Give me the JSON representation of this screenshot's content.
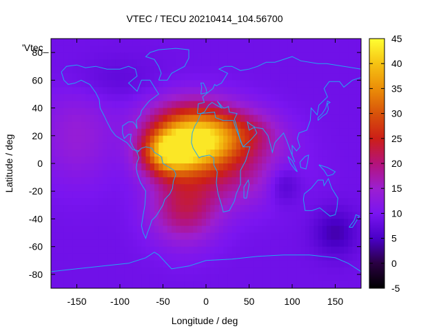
{
  "chart_data": {
    "type": "heatmap",
    "title": "VTEC / TECU 20210414_104.56700",
    "xlabel": "Longitude / deg",
    "ylabel": "Latitude / deg",
    "xlim": [
      -180,
      180
    ],
    "ylim": [
      -90,
      90
    ],
    "x_ticks": [
      -150,
      -100,
      -50,
      0,
      50,
      100,
      150
    ],
    "y_ticks": [
      -80,
      -60,
      -40,
      -20,
      0,
      20,
      40,
      60,
      80
    ],
    "colorbar": {
      "range": [
        -5,
        45
      ],
      "ticks": [
        -5,
        0,
        5,
        10,
        15,
        20,
        25,
        30,
        35,
        40,
        45
      ],
      "palette": "black-purple-red-orange-yellow"
    },
    "legend_label": "'Vtec_",
    "background_level": 9,
    "peak_value": 43,
    "blobs": [
      {
        "lon": -45,
        "lat": 8,
        "sigma_lon": 22,
        "sigma_lat": 12,
        "amp": 26
      },
      {
        "lon": -5,
        "lat": 14,
        "sigma_lon": 28,
        "sigma_lat": 14,
        "amp": 22
      },
      {
        "lon": -20,
        "lat": 30,
        "sigma_lon": 38,
        "sigma_lat": 14,
        "amp": 13
      },
      {
        "lon": -25,
        "lat": -32,
        "sigma_lon": 28,
        "sigma_lat": 18,
        "amp": 12
      },
      {
        "lon": 30,
        "lat": -5,
        "sigma_lon": 45,
        "sigma_lat": 18,
        "amp": 9
      },
      {
        "lon": 45,
        "lat": 22,
        "sigma_lon": 30,
        "sigma_lat": 12,
        "amp": 9
      },
      {
        "lon": -150,
        "lat": 20,
        "sigma_lon": 30,
        "sigma_lat": 25,
        "amp": 5
      },
      {
        "lon": 90,
        "lat": -15,
        "sigma_lon": 14,
        "sigma_lat": 10,
        "amp": -5
      },
      {
        "lon": 150,
        "lat": -50,
        "sigma_lon": 18,
        "sigma_lat": 12,
        "amp": -5
      },
      {
        "lon": -110,
        "lat": 60,
        "sigma_lon": 40,
        "sigma_lat": 12,
        "amp": -2
      }
    ],
    "coastlines": [
      {
        "name": "north-america",
        "points": [
          [
            -168,
            66
          ],
          [
            -162,
            70
          ],
          [
            -150,
            71
          ],
          [
            -140,
            69
          ],
          [
            -128,
            70
          ],
          [
            -115,
            68
          ],
          [
            -100,
            68
          ],
          [
            -90,
            70
          ],
          [
            -82,
            68
          ],
          [
            -80,
            63
          ],
          [
            -90,
            58
          ],
          [
            -85,
            55
          ],
          [
            -80,
            52
          ],
          [
            -75,
            60
          ],
          [
            -65,
            60
          ],
          [
            -60,
            55
          ],
          [
            -55,
            50
          ],
          [
            -66,
            45
          ],
          [
            -70,
            42
          ],
          [
            -75,
            38
          ],
          [
            -76,
            35
          ],
          [
            -81,
            31
          ],
          [
            -80,
            25
          ],
          [
            -82,
            28
          ],
          [
            -85,
            30
          ],
          [
            -90,
            30
          ],
          [
            -97,
            27
          ],
          [
            -97,
            22
          ],
          [
            -95,
            18
          ],
          [
            -90,
            21
          ],
          [
            -87,
            21
          ],
          [
            -88,
            16
          ],
          [
            -84,
            11
          ],
          [
            -80,
            8
          ],
          [
            -78,
            9
          ],
          [
            -85,
            10
          ],
          [
            -92,
            15
          ],
          [
            -105,
            20
          ],
          [
            -110,
            24
          ],
          [
            -115,
            30
          ],
          [
            -118,
            34
          ],
          [
            -123,
            40
          ],
          [
            -124,
            46
          ],
          [
            -128,
            51
          ],
          [
            -135,
            57
          ],
          [
            -145,
            60
          ],
          [
            -152,
            58
          ],
          [
            -160,
            57
          ],
          [
            -165,
            60
          ],
          [
            -168,
            66
          ]
        ]
      },
      {
        "name": "greenland",
        "points": [
          [
            -55,
            60
          ],
          [
            -45,
            60
          ],
          [
            -40,
            65
          ],
          [
            -25,
            70
          ],
          [
            -20,
            76
          ],
          [
            -20,
            82
          ],
          [
            -35,
            83
          ],
          [
            -55,
            82
          ],
          [
            -65,
            80
          ],
          [
            -70,
            77
          ],
          [
            -60,
            75
          ],
          [
            -55,
            70
          ],
          [
            -52,
            65
          ],
          [
            -55,
            60
          ]
        ]
      },
      {
        "name": "south-america",
        "points": [
          [
            -80,
            8
          ],
          [
            -75,
            11
          ],
          [
            -70,
            12
          ],
          [
            -63,
            11
          ],
          [
            -60,
            8
          ],
          [
            -52,
            5
          ],
          [
            -50,
            0
          ],
          [
            -45,
            -2
          ],
          [
            -37,
            -5
          ],
          [
            -35,
            -8
          ],
          [
            -38,
            -13
          ],
          [
            -39,
            -18
          ],
          [
            -42,
            -22
          ],
          [
            -48,
            -26
          ],
          [
            -50,
            -30
          ],
          [
            -55,
            -35
          ],
          [
            -58,
            -38
          ],
          [
            -63,
            -41
          ],
          [
            -65,
            -45
          ],
          [
            -68,
            -50
          ],
          [
            -70,
            -54
          ],
          [
            -73,
            -50
          ],
          [
            -75,
            -45
          ],
          [
            -73,
            -37
          ],
          [
            -71,
            -30
          ],
          [
            -70,
            -20
          ],
          [
            -76,
            -14
          ],
          [
            -80,
            -7
          ],
          [
            -81,
            -3
          ],
          [
            -80,
            1
          ],
          [
            -78,
            4
          ],
          [
            -80,
            8
          ]
        ]
      },
      {
        "name": "europe-asia",
        "points": [
          [
            -10,
            36
          ],
          [
            -9,
            43
          ],
          [
            -2,
            44
          ],
          [
            -4,
            48
          ],
          [
            2,
            51
          ],
          [
            8,
            54
          ],
          [
            10,
            57
          ],
          [
            12,
            56
          ],
          [
            18,
            58
          ],
          [
            25,
            65
          ],
          [
            15,
            68
          ],
          [
            22,
            70
          ],
          [
            30,
            70
          ],
          [
            40,
            67
          ],
          [
            50,
            68
          ],
          [
            60,
            70
          ],
          [
            70,
            73
          ],
          [
            80,
            73
          ],
          [
            100,
            77
          ],
          [
            110,
            74
          ],
          [
            130,
            72
          ],
          [
            140,
            72
          ],
          [
            160,
            70
          ],
          [
            180,
            68
          ],
          [
            180,
            62
          ],
          [
            170,
            60
          ],
          [
            160,
            55
          ],
          [
            155,
            59
          ],
          [
            143,
            59
          ],
          [
            137,
            54
          ],
          [
            141,
            48
          ],
          [
            131,
            42
          ],
          [
            129,
            35
          ],
          [
            122,
            40
          ],
          [
            121,
            31
          ],
          [
            117,
            24
          ],
          [
            108,
            22
          ],
          [
            106,
            18
          ],
          [
            109,
            12
          ],
          [
            105,
            9
          ],
          [
            100,
            13
          ],
          [
            100,
            6
          ],
          [
            103,
            1
          ],
          [
            98,
            9
          ],
          [
            94,
            16
          ],
          [
            90,
            22
          ],
          [
            80,
            15
          ],
          [
            77,
            8
          ],
          [
            72,
            20
          ],
          [
            66,
            25
          ],
          [
            57,
            26
          ],
          [
            52,
            28
          ],
          [
            48,
            30
          ],
          [
            50,
            24
          ],
          [
            56,
            26
          ],
          [
            59,
            22
          ],
          [
            52,
            17
          ],
          [
            43,
            12
          ],
          [
            40,
            16
          ],
          [
            35,
            28
          ],
          [
            33,
            32
          ],
          [
            36,
            36
          ],
          [
            27,
            37
          ],
          [
            26,
            41
          ],
          [
            22,
            40
          ],
          [
            20,
            40
          ],
          [
            13,
            45
          ],
          [
            18,
            40
          ],
          [
            12,
            42
          ],
          [
            7,
            44
          ],
          [
            3,
            42
          ],
          [
            0,
            39
          ],
          [
            -2,
            37
          ],
          [
            -6,
            36
          ],
          [
            -10,
            36
          ]
        ]
      },
      {
        "name": "africa",
        "points": [
          [
            -6,
            36
          ],
          [
            10,
            37
          ],
          [
            11,
            33
          ],
          [
            20,
            31
          ],
          [
            32,
            31
          ],
          [
            33,
            28
          ],
          [
            38,
            20
          ],
          [
            43,
            12
          ],
          [
            51,
            12
          ],
          [
            46,
            2
          ],
          [
            40,
            -5
          ],
          [
            40,
            -15
          ],
          [
            35,
            -22
          ],
          [
            33,
            -27
          ],
          [
            27,
            -34
          ],
          [
            20,
            -35
          ],
          [
            18,
            -30
          ],
          [
            14,
            -22
          ],
          [
            12,
            -14
          ],
          [
            13,
            -6
          ],
          [
            9,
            -1
          ],
          [
            9,
            4
          ],
          [
            4,
            6
          ],
          [
            -5,
            5
          ],
          [
            -8,
            4
          ],
          [
            -15,
            11
          ],
          [
            -17,
            15
          ],
          [
            -16,
            22
          ],
          [
            -13,
            27
          ],
          [
            -10,
            30
          ],
          [
            -6,
            36
          ]
        ]
      },
      {
        "name": "australia",
        "points": [
          [
            114,
            -22
          ],
          [
            122,
            -18
          ],
          [
            130,
            -12
          ],
          [
            136,
            -12
          ],
          [
            137,
            -16
          ],
          [
            142,
            -11
          ],
          [
            146,
            -18
          ],
          [
            153,
            -25
          ],
          [
            152,
            -32
          ],
          [
            150,
            -37
          ],
          [
            144,
            -38
          ],
          [
            138,
            -35
          ],
          [
            132,
            -32
          ],
          [
            123,
            -34
          ],
          [
            115,
            -34
          ],
          [
            113,
            -26
          ],
          [
            114,
            -22
          ]
        ]
      },
      {
        "name": "antarctica",
        "points": [
          [
            -180,
            -78
          ],
          [
            -150,
            -76
          ],
          [
            -120,
            -74
          ],
          [
            -90,
            -72
          ],
          [
            -70,
            -68
          ],
          [
            -60,
            -64
          ],
          [
            -55,
            -66
          ],
          [
            -40,
            -76
          ],
          [
            -20,
            -74
          ],
          [
            0,
            -70
          ],
          [
            30,
            -69
          ],
          [
            60,
            -67
          ],
          [
            90,
            -66
          ],
          [
            120,
            -66
          ],
          [
            150,
            -68
          ],
          [
            165,
            -72
          ],
          [
            180,
            -78
          ]
        ]
      },
      {
        "name": "madagascar",
        "points": [
          [
            44,
            -25
          ],
          [
            47,
            -25
          ],
          [
            50,
            -15
          ],
          [
            49,
            -12
          ],
          [
            44,
            -17
          ],
          [
            44,
            -25
          ]
        ]
      },
      {
        "name": "british-isles",
        "points": [
          [
            -6,
            50
          ],
          [
            1,
            51
          ],
          [
            0,
            54
          ],
          [
            -3,
            58
          ],
          [
            -6,
            58
          ],
          [
            -5,
            55
          ],
          [
            -6,
            50
          ]
        ]
      },
      {
        "name": "japan",
        "points": [
          [
            130,
            31
          ],
          [
            135,
            34
          ],
          [
            140,
            36
          ],
          [
            142,
            39
          ],
          [
            141,
            43
          ],
          [
            144,
            44
          ],
          [
            141,
            45
          ],
          [
            139,
            40
          ],
          [
            135,
            36
          ],
          [
            130,
            33
          ],
          [
            130,
            31
          ]
        ]
      },
      {
        "name": "new-zealand",
        "points": [
          [
            166,
            -46
          ],
          [
            172,
            -41
          ],
          [
            174,
            -37
          ],
          [
            178,
            -38
          ],
          [
            174,
            -42
          ],
          [
            170,
            -46
          ],
          [
            166,
            -46
          ]
        ]
      },
      {
        "name": "borneo",
        "points": [
          [
            109,
            1
          ],
          [
            115,
            5
          ],
          [
            119,
            6
          ],
          [
            118,
            1
          ],
          [
            116,
            -4
          ],
          [
            110,
            -3
          ],
          [
            109,
            1
          ]
        ]
      },
      {
        "name": "sumatra",
        "points": [
          [
            95,
            5
          ],
          [
            100,
            2
          ],
          [
            106,
            -6
          ],
          [
            104,
            -5
          ],
          [
            98,
            0
          ],
          [
            95,
            5
          ]
        ]
      },
      {
        "name": "new-guinea",
        "points": [
          [
            131,
            -1
          ],
          [
            141,
            -3
          ],
          [
            150,
            -6
          ],
          [
            147,
            -8
          ],
          [
            141,
            -9
          ],
          [
            137,
            -5
          ],
          [
            131,
            -1
          ]
        ]
      }
    ]
  }
}
